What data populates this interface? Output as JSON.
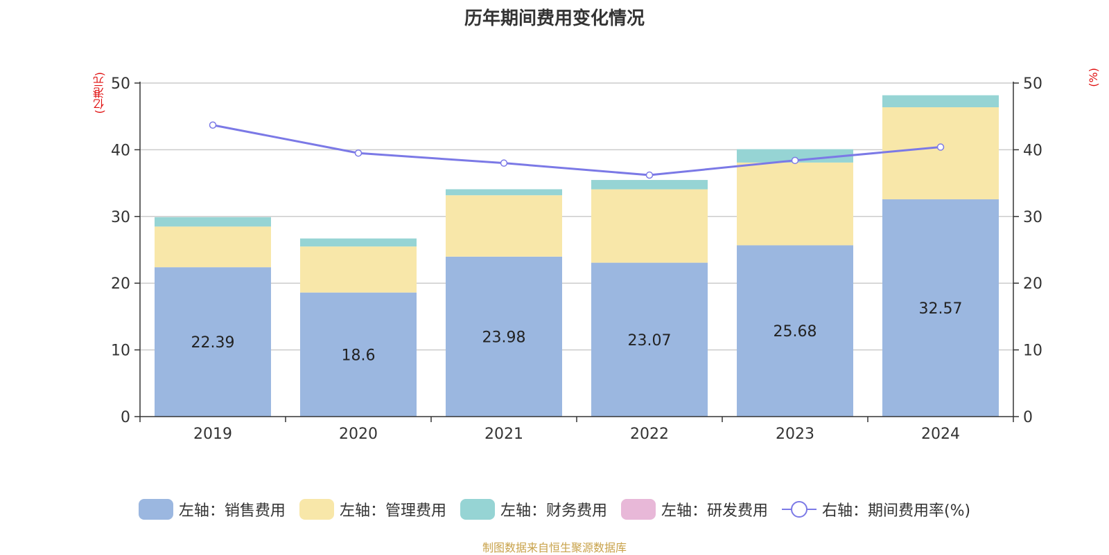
{
  "chart_data": {
    "type": "bar",
    "title": "历年期间费用变化情况",
    "categories": [
      "2019",
      "2020",
      "2021",
      "2022",
      "2023",
      "2024"
    ],
    "series": [
      {
        "name": "左轴：销售费用",
        "axis": "left",
        "stack": "total",
        "color": "#9bb7e0",
        "values": [
          22.39,
          18.6,
          23.98,
          23.07,
          25.68,
          32.57
        ],
        "data_labels": [
          "22.39",
          "18.6",
          "23.98",
          "23.07",
          "25.68",
          "32.57"
        ]
      },
      {
        "name": "左轴：管理费用",
        "axis": "left",
        "stack": "total",
        "color": "#f8e7a9",
        "values": [
          6.1,
          6.9,
          9.2,
          11.0,
          12.4,
          13.8
        ]
      },
      {
        "name": "左轴：财务费用",
        "axis": "left",
        "stack": "total",
        "color": "#96d4d4",
        "values": [
          1.4,
          1.2,
          0.9,
          1.4,
          2.0,
          1.8
        ]
      },
      {
        "name": "左轴：研发费用",
        "axis": "left",
        "stack": "total",
        "color": "#e8b8d8",
        "values": [
          0,
          0,
          0,
          0,
          0,
          0
        ]
      },
      {
        "name": "右轴：期间费用率(%)",
        "axis": "right",
        "type": "line",
        "color": "#7b79e6",
        "values": [
          43.7,
          39.5,
          38.0,
          36.2,
          38.4,
          40.4
        ]
      }
    ],
    "left_axis": {
      "unit": "(亿港元)",
      "ylim": [
        0,
        50
      ],
      "ticks": [
        "0",
        "10",
        "20",
        "30",
        "40",
        "50"
      ]
    },
    "right_axis": {
      "unit": "(%)",
      "ylim": [
        0,
        50
      ],
      "ticks": [
        "0",
        "10",
        "20",
        "30",
        "40",
        "50"
      ]
    },
    "grid": true,
    "legend_position": "bottom"
  },
  "source": "制图数据来自恒生聚源数据库"
}
